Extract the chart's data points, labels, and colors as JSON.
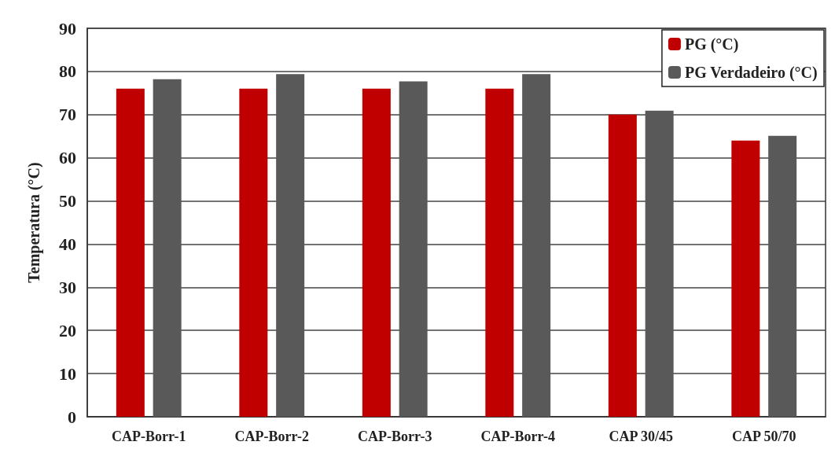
{
  "chart_data": {
    "type": "bar",
    "ylabel": "Temperatura (°C)",
    "categories": [
      "CAP-Borr-1",
      "CAP-Borr-2",
      "CAP-Borr-3",
      "CAP-Borr-4",
      "CAP 30/45",
      "CAP 50/70"
    ],
    "series": [
      {
        "name": "PG (°C)",
        "color": "#c00000",
        "values": [
          76,
          76,
          76,
          76,
          70,
          64
        ]
      },
      {
        "name": "PG Verdadeiro (°C)",
        "color": "#595959",
        "values": [
          78.2,
          79.4,
          77.7,
          79.4,
          70.9,
          65.1
        ]
      }
    ],
    "ylim": [
      0,
      90
    ],
    "yticks": [
      0,
      10,
      20,
      30,
      40,
      50,
      60,
      70,
      80,
      90
    ],
    "grid": "y",
    "legend": "top right"
  }
}
